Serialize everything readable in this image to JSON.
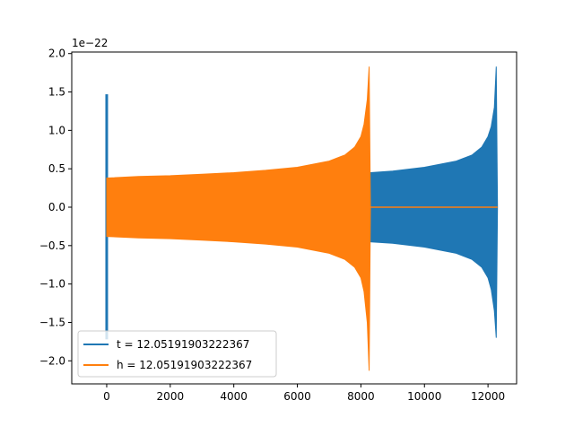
{
  "chart_data": {
    "type": "line",
    "title": "",
    "xlabel": "",
    "ylabel": "",
    "y_offset_label": "1e−22",
    "xlim": [
      -1100,
      12900
    ],
    "ylim": [
      -2.3,
      2.02
    ],
    "x_ticks": [
      0,
      2000,
      4000,
      6000,
      8000,
      10000,
      12000
    ],
    "x_tick_labels": [
      "0",
      "2000",
      "4000",
      "6000",
      "8000",
      "10000",
      "12000"
    ],
    "y_ticks": [
      -2.0,
      -1.5,
      -1.0,
      -0.5,
      0.0,
      0.5,
      1.0,
      1.5,
      2.0
    ],
    "y_tick_labels": [
      "−2.0",
      "−1.5",
      "−1.0",
      "−0.5",
      "0.0",
      "0.5",
      "1.0",
      "1.5",
      "2.0"
    ],
    "grid": false,
    "legend_position": "lower-left",
    "series": [
      {
        "name": "t = 12.05191903222367",
        "color": "#1f77b4",
        "spike": {
          "x": 0,
          "y_max": 1.47,
          "y_min": -1.72
        },
        "envelope": {
          "x": [
            8300,
            9000,
            10000,
            11000,
            11500,
            11800,
            12000,
            12100,
            12200,
            12260,
            12300
          ],
          "upper": [
            0.45,
            0.47,
            0.52,
            0.6,
            0.68,
            0.78,
            0.92,
            1.05,
            1.3,
            1.83,
            0.0
          ],
          "lower": [
            -0.45,
            -0.47,
            -0.52,
            -0.6,
            -0.68,
            -0.78,
            -0.92,
            -1.07,
            -1.35,
            -1.7,
            0.0
          ]
        },
        "flat_value": 0.0
      },
      {
        "name": "h = 12.05191903222367",
        "color": "#ff7f0e",
        "envelope": {
          "x": [
            0,
            1000,
            2000,
            3000,
            4000,
            5000,
            6000,
            7000,
            7500,
            7800,
            8000,
            8100,
            8200,
            8260,
            8300
          ],
          "upper": [
            0.38,
            0.4,
            0.41,
            0.43,
            0.45,
            0.48,
            0.52,
            0.6,
            0.68,
            0.78,
            0.92,
            1.08,
            1.4,
            1.83,
            0.0
          ],
          "lower": [
            -0.38,
            -0.4,
            -0.41,
            -0.43,
            -0.45,
            -0.48,
            -0.52,
            -0.6,
            -0.68,
            -0.78,
            -0.92,
            -1.1,
            -1.5,
            -2.13,
            0.0
          ]
        },
        "flat_x": [
          8300,
          12300
        ],
        "flat_value": 0.0
      }
    ]
  }
}
